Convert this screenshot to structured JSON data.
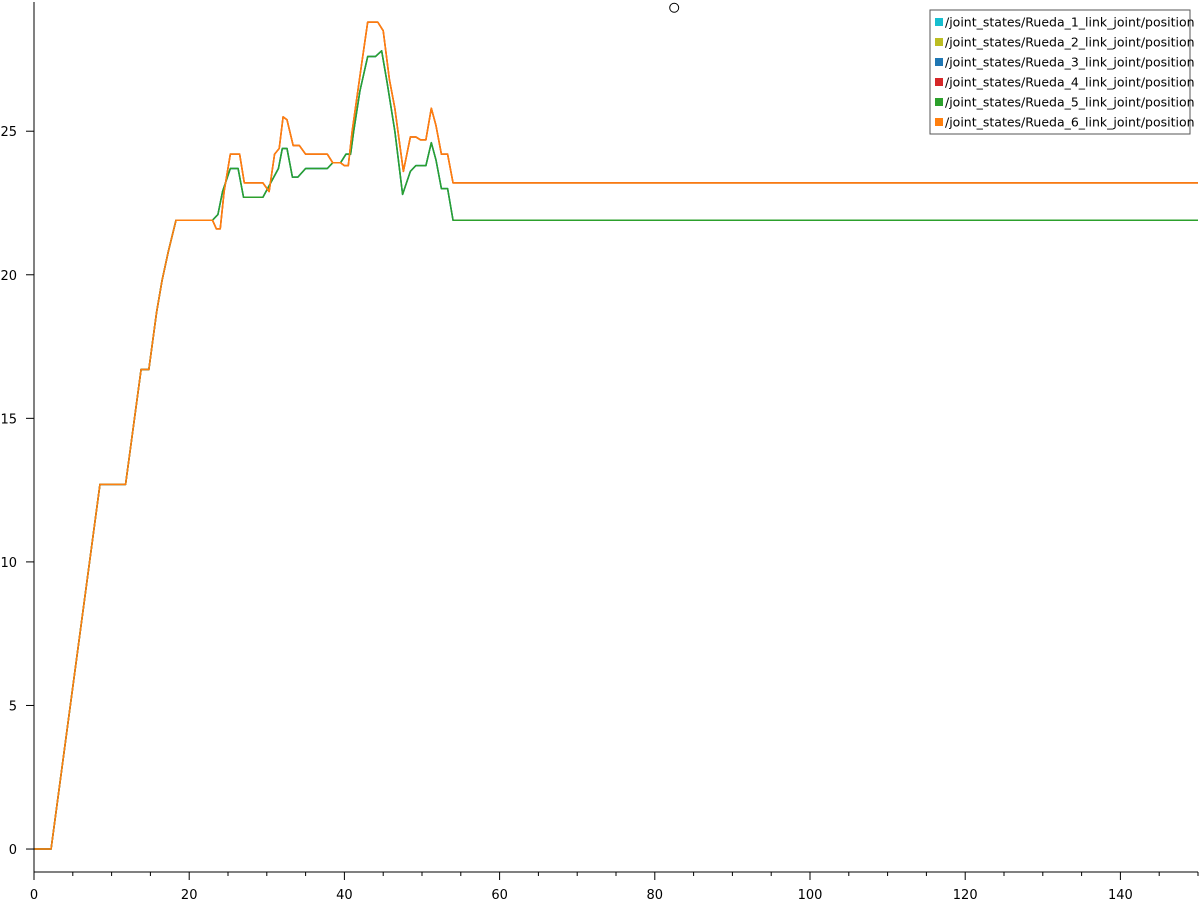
{
  "chart_data": {
    "type": "line",
    "title": "",
    "xlabel": "",
    "ylabel": "",
    "xlim": [
      0,
      150
    ],
    "ylim": [
      -0.8,
      29.5
    ],
    "grid": false,
    "legend_placement": "top-right",
    "x_ticks": [
      0,
      20,
      40,
      60,
      80,
      100,
      120,
      140
    ],
    "y_ticks": [
      0,
      5,
      10,
      15,
      20,
      25
    ],
    "marker_point": {
      "x": 82.5,
      "y": 29.3
    },
    "series": [
      {
        "name": "/joint_states/Rueda_1_link_joint/position",
        "color": "#17becf",
        "points": [
          [
            0,
            0
          ],
          [
            2.2,
            0
          ],
          [
            8.5,
            12.7
          ],
          [
            11.8,
            12.7
          ],
          [
            13.8,
            16.7
          ],
          [
            14.8,
            16.7
          ],
          [
            15.8,
            18.7
          ],
          [
            16.5,
            19.8
          ],
          [
            17.3,
            20.8
          ],
          [
            18.3,
            21.9
          ],
          [
            23,
            21.9
          ],
          [
            23.7,
            22.1
          ],
          [
            24.3,
            22.9
          ],
          [
            25.3,
            23.7
          ],
          [
            26.3,
            23.7
          ],
          [
            27,
            22.7
          ],
          [
            29.5,
            22.7
          ],
          [
            30.5,
            23.2
          ],
          [
            31.5,
            23.7
          ],
          [
            32,
            24.4
          ],
          [
            32.6,
            24.4
          ],
          [
            33.3,
            23.4
          ],
          [
            34,
            23.4
          ],
          [
            35,
            23.7
          ],
          [
            37.8,
            23.7
          ],
          [
            38.5,
            23.9
          ],
          [
            39.5,
            23.9
          ],
          [
            40.2,
            24.2
          ],
          [
            40.8,
            24.2
          ],
          [
            41.2,
            25
          ],
          [
            42,
            26.4
          ],
          [
            43,
            27.6
          ],
          [
            44,
            27.6
          ],
          [
            44.8,
            27.8
          ],
          [
            45.5,
            26.7
          ],
          [
            46.5,
            25
          ],
          [
            47.5,
            22.8
          ],
          [
            48.5,
            23.6
          ],
          [
            49.2,
            23.8
          ],
          [
            50.5,
            23.8
          ],
          [
            51.2,
            24.6
          ],
          [
            51.8,
            24
          ],
          [
            52.5,
            23
          ],
          [
            53.3,
            23
          ],
          [
            54,
            21.9
          ],
          [
            150,
            21.9
          ]
        ]
      },
      {
        "name": "/joint_states/Rueda_2_link_joint/position",
        "color": "#bcbd22",
        "points": [
          [
            0,
            0
          ],
          [
            2.2,
            0
          ],
          [
            8.5,
            12.7
          ],
          [
            11.8,
            12.7
          ],
          [
            13.8,
            16.7
          ],
          [
            14.8,
            16.7
          ],
          [
            15.8,
            18.7
          ],
          [
            16.5,
            19.8
          ],
          [
            17.3,
            20.8
          ],
          [
            18.3,
            21.9
          ],
          [
            23,
            21.9
          ],
          [
            23.5,
            21.6
          ],
          [
            24,
            21.6
          ],
          [
            24.5,
            22.9
          ],
          [
            25.3,
            24.2
          ],
          [
            26.5,
            24.2
          ],
          [
            27.1,
            23.2
          ],
          [
            29.5,
            23.2
          ],
          [
            30.3,
            22.9
          ],
          [
            31,
            24.2
          ],
          [
            31.6,
            24.4
          ],
          [
            32.1,
            25.5
          ],
          [
            32.6,
            25.4
          ],
          [
            33.4,
            24.5
          ],
          [
            34.2,
            24.5
          ],
          [
            35,
            24.2
          ],
          [
            37.8,
            24.2
          ],
          [
            38.5,
            23.9
          ],
          [
            39.5,
            23.9
          ],
          [
            40,
            23.8
          ],
          [
            40.5,
            23.8
          ],
          [
            41,
            25
          ],
          [
            42.2,
            27.3
          ],
          [
            43,
            28.8
          ],
          [
            44.3,
            28.8
          ],
          [
            45,
            28.5
          ],
          [
            45.8,
            26.8
          ],
          [
            46.5,
            25.8
          ],
          [
            47.6,
            23.6
          ],
          [
            48.5,
            24.8
          ],
          [
            49.2,
            24.8
          ],
          [
            49.8,
            24.7
          ],
          [
            50.5,
            24.7
          ],
          [
            51.2,
            25.8
          ],
          [
            51.8,
            25.2
          ],
          [
            52.5,
            24.2
          ],
          [
            53.3,
            24.2
          ],
          [
            54,
            23.2
          ],
          [
            150,
            23.2
          ]
        ]
      },
      {
        "name": "/joint_states/Rueda_3_link_joint/position",
        "color": "#1f77b4",
        "points": [
          [
            0,
            0
          ],
          [
            2.2,
            0
          ],
          [
            8.5,
            12.7
          ],
          [
            11.8,
            12.7
          ],
          [
            13.8,
            16.7
          ],
          [
            14.8,
            16.7
          ],
          [
            15.8,
            18.7
          ],
          [
            16.5,
            19.8
          ],
          [
            17.3,
            20.8
          ],
          [
            18.3,
            21.9
          ],
          [
            23,
            21.9
          ],
          [
            23.7,
            22.1
          ],
          [
            24.3,
            22.9
          ],
          [
            25.3,
            23.7
          ],
          [
            26.3,
            23.7
          ],
          [
            27,
            22.7
          ],
          [
            29.5,
            22.7
          ],
          [
            30.5,
            23.2
          ],
          [
            31.5,
            23.7
          ],
          [
            32,
            24.4
          ],
          [
            32.6,
            24.4
          ],
          [
            33.3,
            23.4
          ],
          [
            34,
            23.4
          ],
          [
            35,
            23.7
          ],
          [
            37.8,
            23.7
          ],
          [
            38.5,
            23.9
          ],
          [
            39.5,
            23.9
          ],
          [
            40.2,
            24.2
          ],
          [
            40.8,
            24.2
          ],
          [
            41.2,
            25
          ],
          [
            42,
            26.4
          ],
          [
            43,
            27.6
          ],
          [
            44,
            27.6
          ],
          [
            44.8,
            27.8
          ],
          [
            45.5,
            26.7
          ],
          [
            46.5,
            25
          ],
          [
            47.5,
            22.8
          ],
          [
            48.5,
            23.6
          ],
          [
            49.2,
            23.8
          ],
          [
            50.5,
            23.8
          ],
          [
            51.2,
            24.6
          ],
          [
            51.8,
            24
          ],
          [
            52.5,
            23
          ],
          [
            53.3,
            23
          ],
          [
            54,
            21.9
          ],
          [
            150,
            21.9
          ]
        ]
      },
      {
        "name": "/joint_states/Rueda_4_link_joint/position",
        "color": "#d62728",
        "points": [
          [
            0,
            0
          ],
          [
            2.2,
            0
          ],
          [
            8.5,
            12.7
          ],
          [
            11.8,
            12.7
          ],
          [
            13.8,
            16.7
          ],
          [
            14.8,
            16.7
          ],
          [
            15.8,
            18.7
          ],
          [
            16.5,
            19.8
          ],
          [
            17.3,
            20.8
          ],
          [
            18.3,
            21.9
          ],
          [
            23,
            21.9
          ],
          [
            23.5,
            21.6
          ],
          [
            24,
            21.6
          ],
          [
            24.5,
            22.9
          ],
          [
            25.3,
            24.2
          ],
          [
            26.5,
            24.2
          ],
          [
            27.1,
            23.2
          ],
          [
            29.5,
            23.2
          ],
          [
            30.3,
            22.9
          ],
          [
            31,
            24.2
          ],
          [
            31.6,
            24.4
          ],
          [
            32.1,
            25.5
          ],
          [
            32.6,
            25.4
          ],
          [
            33.4,
            24.5
          ],
          [
            34.2,
            24.5
          ],
          [
            35,
            24.2
          ],
          [
            37.8,
            24.2
          ],
          [
            38.5,
            23.9
          ],
          [
            39.5,
            23.9
          ],
          [
            40,
            23.8
          ],
          [
            40.5,
            23.8
          ],
          [
            41,
            25
          ],
          [
            42.2,
            27.3
          ],
          [
            43,
            28.8
          ],
          [
            44.3,
            28.8
          ],
          [
            45,
            28.5
          ],
          [
            45.8,
            26.8
          ],
          [
            46.5,
            25.8
          ],
          [
            47.6,
            23.6
          ],
          [
            48.5,
            24.8
          ],
          [
            49.2,
            24.8
          ],
          [
            49.8,
            24.7
          ],
          [
            50.5,
            24.7
          ],
          [
            51.2,
            25.8
          ],
          [
            51.8,
            25.2
          ],
          [
            52.5,
            24.2
          ],
          [
            53.3,
            24.2
          ],
          [
            54,
            23.2
          ],
          [
            150,
            23.2
          ]
        ]
      },
      {
        "name": "/joint_states/Rueda_5_link_joint/position",
        "color": "#2ca02c",
        "points": [
          [
            0,
            0
          ],
          [
            2.2,
            0
          ],
          [
            8.5,
            12.7
          ],
          [
            11.8,
            12.7
          ],
          [
            13.8,
            16.7
          ],
          [
            14.8,
            16.7
          ],
          [
            15.8,
            18.7
          ],
          [
            16.5,
            19.8
          ],
          [
            17.3,
            20.8
          ],
          [
            18.3,
            21.9
          ],
          [
            23,
            21.9
          ],
          [
            23.7,
            22.1
          ],
          [
            24.3,
            22.9
          ],
          [
            25.3,
            23.7
          ],
          [
            26.3,
            23.7
          ],
          [
            27,
            22.7
          ],
          [
            29.5,
            22.7
          ],
          [
            30.5,
            23.2
          ],
          [
            31.5,
            23.7
          ],
          [
            32,
            24.4
          ],
          [
            32.6,
            24.4
          ],
          [
            33.3,
            23.4
          ],
          [
            34,
            23.4
          ],
          [
            35,
            23.7
          ],
          [
            37.8,
            23.7
          ],
          [
            38.5,
            23.9
          ],
          [
            39.5,
            23.9
          ],
          [
            40.2,
            24.2
          ],
          [
            40.8,
            24.2
          ],
          [
            41.2,
            25
          ],
          [
            42,
            26.4
          ],
          [
            43,
            27.6
          ],
          [
            44,
            27.6
          ],
          [
            44.8,
            27.8
          ],
          [
            45.5,
            26.7
          ],
          [
            46.5,
            25
          ],
          [
            47.5,
            22.8
          ],
          [
            48.5,
            23.6
          ],
          [
            49.2,
            23.8
          ],
          [
            50.5,
            23.8
          ],
          [
            51.2,
            24.6
          ],
          [
            51.8,
            24
          ],
          [
            52.5,
            23
          ],
          [
            53.3,
            23
          ],
          [
            54,
            21.9
          ],
          [
            150,
            21.9
          ]
        ]
      },
      {
        "name": "/joint_states/Rueda_6_link_joint/position",
        "color": "#ff7f0e",
        "points": [
          [
            0,
            0
          ],
          [
            2.2,
            0
          ],
          [
            8.5,
            12.7
          ],
          [
            11.8,
            12.7
          ],
          [
            13.8,
            16.7
          ],
          [
            14.8,
            16.7
          ],
          [
            15.8,
            18.7
          ],
          [
            16.5,
            19.8
          ],
          [
            17.3,
            20.8
          ],
          [
            18.3,
            21.9
          ],
          [
            23,
            21.9
          ],
          [
            23.5,
            21.6
          ],
          [
            24,
            21.6
          ],
          [
            24.5,
            22.9
          ],
          [
            25.3,
            24.2
          ],
          [
            26.5,
            24.2
          ],
          [
            27.1,
            23.2
          ],
          [
            29.5,
            23.2
          ],
          [
            30.3,
            22.9
          ],
          [
            31,
            24.2
          ],
          [
            31.6,
            24.4
          ],
          [
            32.1,
            25.5
          ],
          [
            32.6,
            25.4
          ],
          [
            33.4,
            24.5
          ],
          [
            34.2,
            24.5
          ],
          [
            35,
            24.2
          ],
          [
            37.8,
            24.2
          ],
          [
            38.5,
            23.9
          ],
          [
            39.5,
            23.9
          ],
          [
            40,
            23.8
          ],
          [
            40.5,
            23.8
          ],
          [
            41,
            25
          ],
          [
            42.2,
            27.3
          ],
          [
            43,
            28.8
          ],
          [
            44.3,
            28.8
          ],
          [
            45,
            28.5
          ],
          [
            45.8,
            26.8
          ],
          [
            46.5,
            25.8
          ],
          [
            47.6,
            23.6
          ],
          [
            48.5,
            24.8
          ],
          [
            49.2,
            24.8
          ],
          [
            49.8,
            24.7
          ],
          [
            50.5,
            24.7
          ],
          [
            51.2,
            25.8
          ],
          [
            51.8,
            25.2
          ],
          [
            52.5,
            24.2
          ],
          [
            53.3,
            24.2
          ],
          [
            54,
            23.2
          ],
          [
            150,
            23.2
          ]
        ]
      }
    ]
  }
}
